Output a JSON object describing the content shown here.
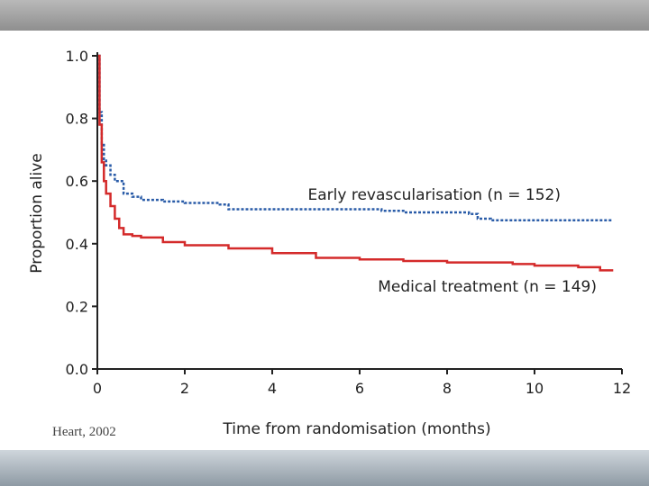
{
  "citation": "Heart, 2002",
  "colors": {
    "medical": "#d42a2a",
    "revasc": "#2a5ca8",
    "axis": "#222222"
  },
  "chart_data": {
    "type": "line",
    "title": "",
    "xlabel": "Time from randomisation (months)",
    "ylabel": "Proportion alive",
    "xlim": [
      0,
      12
    ],
    "ylim": [
      0,
      1.0
    ],
    "xticks": [
      0,
      2,
      4,
      6,
      8,
      10,
      12
    ],
    "yticks": [
      "0.0",
      "0.2",
      "0.4",
      "0.6",
      "0.8",
      "1.0"
    ],
    "series": [
      {
        "name": "Early revascularisation (n = 152)",
        "style": "dotted",
        "color": "#2a5ca8",
        "x": [
          0,
          0.05,
          0.1,
          0.15,
          0.2,
          0.3,
          0.4,
          0.6,
          0.8,
          1.0,
          1.5,
          2.0,
          2.5,
          2.8,
          3.0,
          4.0,
          5.0,
          6.0,
          6.5,
          7.0,
          8.0,
          8.5,
          8.7,
          9.0,
          10.0,
          11.0,
          11.8
        ],
        "y": [
          1.0,
          0.82,
          0.72,
          0.67,
          0.65,
          0.62,
          0.6,
          0.56,
          0.55,
          0.54,
          0.535,
          0.53,
          0.53,
          0.525,
          0.51,
          0.51,
          0.51,
          0.51,
          0.505,
          0.5,
          0.5,
          0.495,
          0.48,
          0.475,
          0.475,
          0.475,
          0.475
        ]
      },
      {
        "name": "Medical treatment (n = 149)",
        "style": "solid",
        "color": "#d42a2a",
        "x": [
          0,
          0.05,
          0.1,
          0.15,
          0.2,
          0.3,
          0.4,
          0.5,
          0.6,
          0.8,
          1.0,
          1.5,
          2.0,
          3.0,
          4.0,
          5.0,
          6.0,
          7.0,
          8.0,
          9.0,
          9.5,
          10.0,
          11.0,
          11.5,
          11.8
        ],
        "y": [
          1.0,
          0.78,
          0.66,
          0.6,
          0.56,
          0.52,
          0.48,
          0.45,
          0.43,
          0.425,
          0.42,
          0.405,
          0.395,
          0.385,
          0.37,
          0.355,
          0.35,
          0.345,
          0.34,
          0.34,
          0.335,
          0.33,
          0.325,
          0.315,
          0.315
        ]
      }
    ],
    "annotations": [
      {
        "text": "Early revascularisation (n = 152)",
        "series": 0
      },
      {
        "text": "Medical treatment (n = 149)",
        "series": 1
      }
    ]
  }
}
